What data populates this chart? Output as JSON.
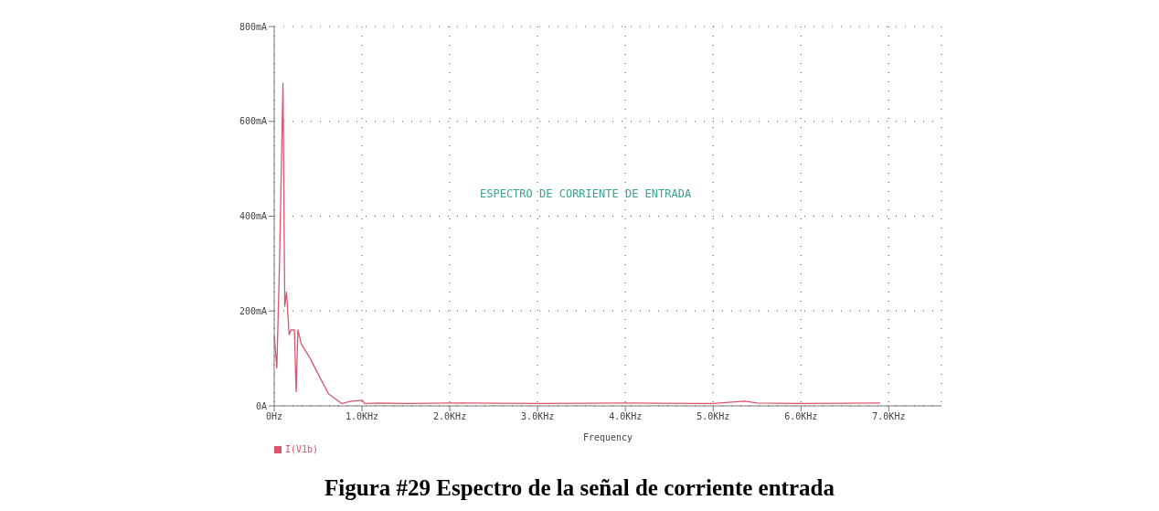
{
  "chart_data": {
    "type": "line",
    "title": "Figura #29 Espectro de la señal de corriente entrada",
    "xlabel": "Frequency",
    "annotations": [
      "ESPECTRO DE CORRIENTE DE ENTRADA"
    ],
    "x": [
      0,
      0.03,
      0.06,
      0.1,
      0.12,
      0.14,
      0.17,
      0.19,
      0.23,
      0.25,
      0.27,
      0.31,
      0.41,
      0.52,
      0.62,
      0.77,
      0.88,
      1.0,
      1.03,
      1.2,
      1.5,
      2.0,
      3.0,
      4.0,
      5.0,
      5.36,
      5.5,
      6.0,
      6.9
    ],
    "series": [
      {
        "name": "I(V1b)",
        "color": "#d9566e",
        "values": [
          150,
          80,
          300,
          680,
          210,
          240,
          150,
          160,
          160,
          30,
          160,
          130,
          100,
          60,
          25,
          5,
          10,
          12,
          5,
          6,
          5,
          6,
          5,
          6,
          5,
          10,
          6,
          5,
          6
        ]
      }
    ],
    "xlim": [
      0,
      7.6
    ],
    "xticks": [
      {
        "value": 0,
        "label": "0Hz"
      },
      {
        "value": 1,
        "label": "1.0KHz"
      },
      {
        "value": 2,
        "label": "2.0KHz"
      },
      {
        "value": 3,
        "label": "3.0KHz"
      },
      {
        "value": 4,
        "label": "4.0KHz"
      },
      {
        "value": 5,
        "label": "5.0KHz"
      },
      {
        "value": 6,
        "label": "6.0KHz"
      },
      {
        "value": 7,
        "label": "7.0KHz"
      }
    ],
    "ylim": [
      0,
      800
    ],
    "yticks": [
      {
        "value": 0,
        "label": "0A"
      },
      {
        "value": 200,
        "label": "200mA"
      },
      {
        "value": 400,
        "label": "400mA"
      },
      {
        "value": 600,
        "label": "600mA"
      },
      {
        "value": 800,
        "label": "800mA"
      }
    ],
    "grid": true,
    "legend": "bottom left",
    "marker": "none",
    "line_style": "solid"
  }
}
